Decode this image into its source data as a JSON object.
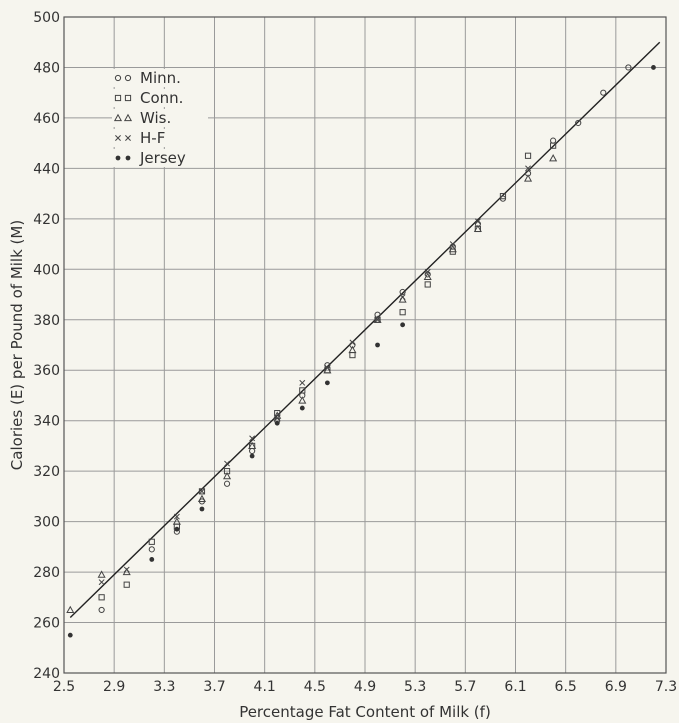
{
  "chart_data": {
    "type": "scatter",
    "title": "",
    "xlabel": "Percentage Fat Content of Milk (f)",
    "ylabel": "Calories (E) per Pound of Milk (M)",
    "xlim": [
      2.5,
      7.3
    ],
    "ylim": [
      240,
      500
    ],
    "xticks": [
      2.5,
      2.9,
      3.3,
      3.7,
      4.1,
      4.5,
      4.9,
      5.3,
      5.7,
      6.1,
      6.5,
      6.9,
      7.3
    ],
    "xtick_labels": [
      "2.5",
      "2.9",
      "3.3",
      "3.7",
      "4.1",
      "4.5",
      "4.9",
      "5.3",
      "5.7",
      "6.1",
      "6.5",
      "6.9",
      "7.3"
    ],
    "yticks": [
      240,
      260,
      280,
      300,
      320,
      340,
      360,
      380,
      400,
      420,
      440,
      460,
      480,
      500
    ],
    "ytick_labels": [
      "240",
      "260",
      "280",
      "300",
      "320",
      "340",
      "360",
      "380",
      "400",
      "420",
      "440",
      "460",
      "480",
      "500"
    ],
    "grid": true,
    "legend_position": "top-left",
    "series": [
      {
        "name": "Minn.",
        "marker": "open-circle",
        "points": [
          [
            2.8,
            265
          ],
          [
            3.2,
            289
          ],
          [
            3.4,
            296
          ],
          [
            3.6,
            308
          ],
          [
            3.8,
            315
          ],
          [
            4.0,
            328
          ],
          [
            4.2,
            340
          ],
          [
            4.4,
            350
          ],
          [
            4.6,
            362
          ],
          [
            4.8,
            370
          ],
          [
            5.0,
            382
          ],
          [
            5.2,
            391
          ],
          [
            5.4,
            398
          ],
          [
            5.6,
            409
          ],
          [
            5.8,
            418
          ],
          [
            6.0,
            428
          ],
          [
            6.2,
            438
          ],
          [
            6.4,
            451
          ],
          [
            6.6,
            458
          ],
          [
            6.8,
            470
          ],
          [
            7.0,
            480
          ]
        ]
      },
      {
        "name": "Conn.",
        "marker": "open-square",
        "points": [
          [
            2.8,
            270
          ],
          [
            3.0,
            275
          ],
          [
            3.2,
            292
          ],
          [
            3.4,
            298
          ],
          [
            3.6,
            312
          ],
          [
            3.8,
            320
          ],
          [
            4.0,
            330
          ],
          [
            4.2,
            343
          ],
          [
            4.4,
            352
          ],
          [
            4.6,
            360
          ],
          [
            4.8,
            366
          ],
          [
            5.0,
            380
          ],
          [
            5.2,
            383
          ],
          [
            5.4,
            394
          ],
          [
            5.6,
            407
          ],
          [
            5.8,
            416
          ],
          [
            6.0,
            429
          ],
          [
            6.2,
            445
          ],
          [
            6.4,
            449
          ]
        ]
      },
      {
        "name": "Wis.",
        "marker": "open-triangle",
        "points": [
          [
            2.55,
            265
          ],
          [
            2.8,
            279
          ],
          [
            3.0,
            280
          ],
          [
            3.4,
            300
          ],
          [
            3.6,
            309
          ],
          [
            3.8,
            318
          ],
          [
            4.0,
            330
          ],
          [
            4.2,
            342
          ],
          [
            4.4,
            348
          ],
          [
            4.6,
            360
          ],
          [
            4.8,
            368
          ],
          [
            5.0,
            380
          ],
          [
            5.2,
            388
          ],
          [
            5.4,
            397
          ],
          [
            5.6,
            408
          ],
          [
            5.8,
            416
          ],
          [
            6.2,
            436
          ],
          [
            6.4,
            444
          ]
        ]
      },
      {
        "name": "H-F",
        "marker": "cross",
        "points": [
          [
            2.8,
            276
          ],
          [
            3.0,
            281
          ],
          [
            3.4,
            302
          ],
          [
            3.6,
            312
          ],
          [
            3.8,
            323
          ],
          [
            4.0,
            333
          ],
          [
            4.2,
            341
          ],
          [
            4.4,
            355
          ],
          [
            4.6,
            361
          ],
          [
            4.8,
            371
          ],
          [
            5.0,
            380
          ],
          [
            5.2,
            389
          ],
          [
            5.4,
            399
          ],
          [
            5.6,
            410
          ],
          [
            5.8,
            419
          ],
          [
            6.2,
            440
          ]
        ]
      },
      {
        "name": "Jersey",
        "marker": "filled-dot",
        "points": [
          [
            2.55,
            255
          ],
          [
            3.2,
            285
          ],
          [
            3.4,
            297
          ],
          [
            3.6,
            305
          ],
          [
            4.0,
            326
          ],
          [
            4.2,
            339
          ],
          [
            4.4,
            345
          ],
          [
            4.6,
            355
          ],
          [
            5.0,
            370
          ],
          [
            5.2,
            378
          ],
          [
            7.2,
            480
          ]
        ]
      }
    ],
    "fit_line": {
      "from": [
        2.55,
        262
      ],
      "to": [
        7.25,
        490
      ]
    }
  }
}
